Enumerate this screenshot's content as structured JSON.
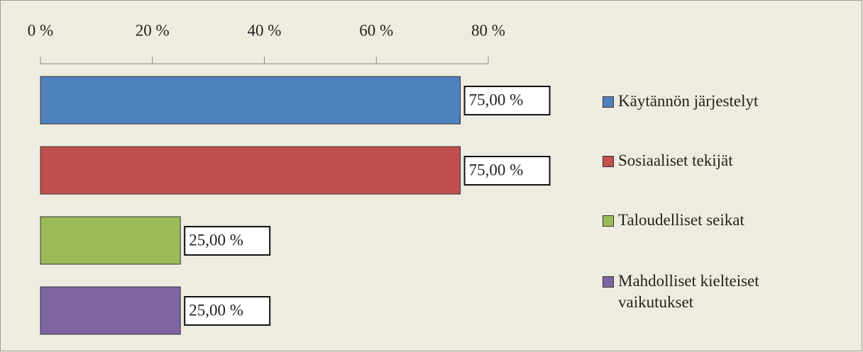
{
  "chart_data": {
    "type": "bar",
    "orientation": "horizontal",
    "xlim": [
      0,
      80
    ],
    "xticks": [
      {
        "value": 0,
        "label": "0 %"
      },
      {
        "value": 20,
        "label": "20 %"
      },
      {
        "value": 40,
        "label": "40 %"
      },
      {
        "value": 60,
        "label": "60 %"
      },
      {
        "value": 80,
        "label": "80 %"
      }
    ],
    "series": [
      {
        "name": "Käytännön järjestelyt",
        "color": "#4f81bd",
        "values": [
          75
        ],
        "value_labels": [
          "75,00 %"
        ]
      },
      {
        "name": "Sosiaaliset tekijät",
        "color": "#c0504d",
        "values": [
          75
        ],
        "value_labels": [
          "75,00 %"
        ]
      },
      {
        "name": "Taloudelliset seikat",
        "color": "#9bbb59",
        "values": [
          25
        ],
        "value_labels": [
          "25,00 %"
        ]
      },
      {
        "name": "Mahdolliset kielteiset vaikutukset",
        "color": "#8064a2",
        "values": [
          25
        ],
        "value_labels": [
          "25,00 %"
        ]
      }
    ],
    "legend": "right"
  }
}
